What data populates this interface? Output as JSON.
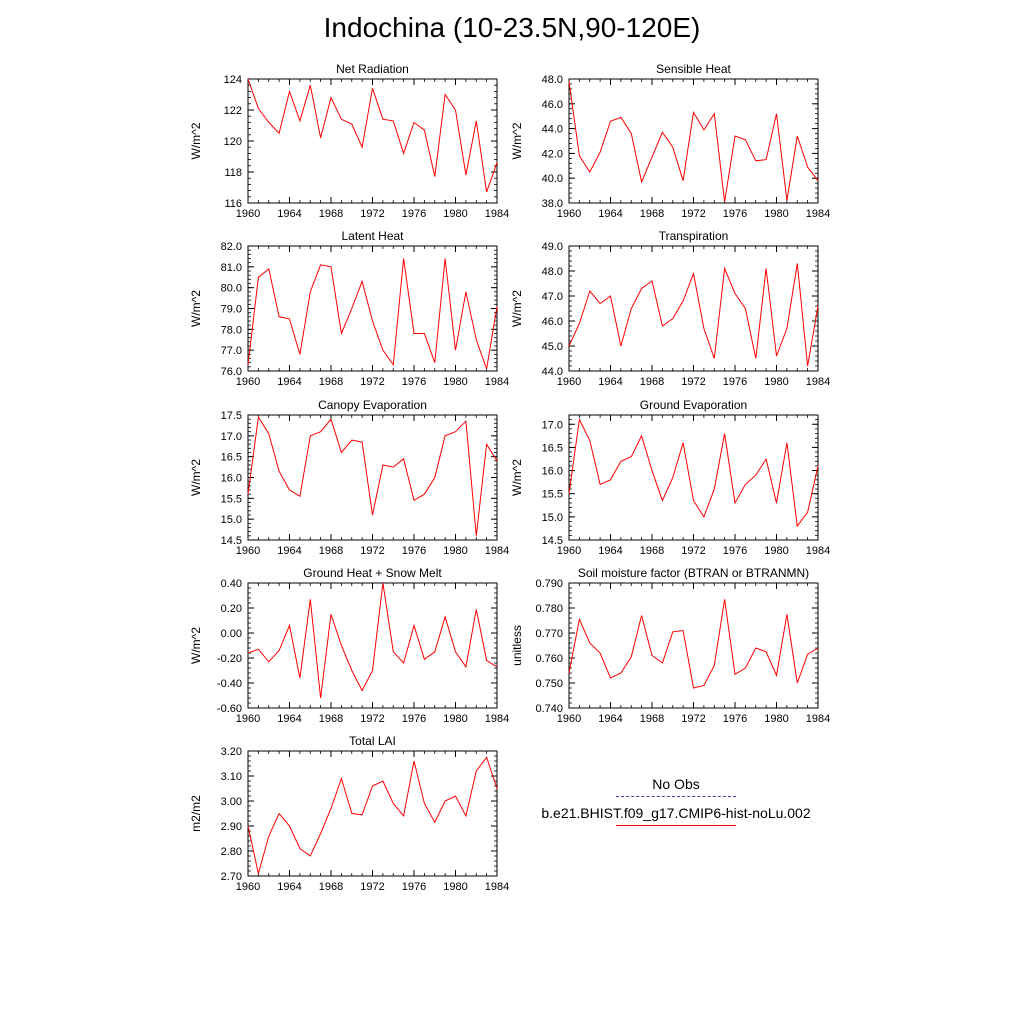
{
  "title": "Indochina (10-23.5N,90-120E)",
  "legend": [
    {
      "label": "No Obs",
      "color": "#3b2f9e",
      "style": "dashed"
    },
    {
      "label": "b.e21.BHIST.f09_g17.CMIP6-hist-noLu.002",
      "color": "#ff0000",
      "style": "solid"
    }
  ],
  "chart_data": [
    {
      "type": "line",
      "title": "Net Radiation",
      "ylabel": "W/m^2",
      "x": [
        1960,
        1961,
        1962,
        1963,
        1964,
        1965,
        1966,
        1967,
        1968,
        1969,
        1970,
        1971,
        1972,
        1973,
        1974,
        1975,
        1976,
        1977,
        1978,
        1979,
        1980,
        1981,
        1982,
        1983,
        1984
      ],
      "xlim": [
        1960,
        1984
      ],
      "xticks": [
        "1960",
        "1964",
        "1968",
        "1972",
        "1976",
        "1980",
        "1984"
      ],
      "ylim": [
        116,
        124
      ],
      "yticks": [
        "116",
        "118",
        "120",
        "122",
        "124"
      ],
      "series": [
        {
          "color": "#ff0000",
          "values": [
            124.0,
            122.1,
            121.2,
            120.5,
            123.2,
            121.3,
            123.6,
            120.2,
            122.8,
            121.4,
            121.1,
            119.6,
            123.4,
            121.4,
            121.3,
            119.2,
            121.2,
            120.7,
            117.7,
            123.0,
            122.0,
            117.8,
            121.3,
            116.7,
            118.6
          ]
        }
      ]
    },
    {
      "type": "line",
      "title": "Sensible Heat",
      "ylabel": "W/m^2",
      "x": [
        1960,
        1961,
        1962,
        1963,
        1964,
        1965,
        1966,
        1967,
        1968,
        1969,
        1970,
        1971,
        1972,
        1973,
        1974,
        1975,
        1976,
        1977,
        1978,
        1979,
        1980,
        1981,
        1982,
        1983,
        1984
      ],
      "xlim": [
        1960,
        1984
      ],
      "xticks": [
        "1960",
        "1964",
        "1968",
        "1972",
        "1976",
        "1980",
        "1984"
      ],
      "ylim": [
        38,
        48
      ],
      "yticks": [
        "38.0",
        "40.0",
        "42.0",
        "44.0",
        "46.0",
        "48.0"
      ],
      "series": [
        {
          "color": "#ff0000",
          "values": [
            47.8,
            41.8,
            40.5,
            42.1,
            44.6,
            44.9,
            43.6,
            39.7,
            41.7,
            43.7,
            42.5,
            39.8,
            45.3,
            43.9,
            45.2,
            38.1,
            43.4,
            43.1,
            41.4,
            41.5,
            45.2,
            38.2,
            43.4,
            40.9,
            39.8
          ]
        }
      ]
    },
    {
      "type": "line",
      "title": "Latent Heat",
      "ylabel": "W/m^2",
      "x": [
        1960,
        1961,
        1962,
        1963,
        1964,
        1965,
        1966,
        1967,
        1968,
        1969,
        1970,
        1971,
        1972,
        1973,
        1974,
        1975,
        1976,
        1977,
        1978,
        1979,
        1980,
        1981,
        1982,
        1983,
        1984
      ],
      "xlim": [
        1960,
        1984
      ],
      "xticks": [
        "1960",
        "1964",
        "1968",
        "1972",
        "1976",
        "1980",
        "1984"
      ],
      "ylim": [
        76,
        82
      ],
      "yticks": [
        "76.0",
        "77.0",
        "78.0",
        "79.0",
        "80.0",
        "81.0",
        "82.0"
      ],
      "series": [
        {
          "color": "#ff0000",
          "values": [
            76.3,
            80.5,
            80.9,
            78.6,
            78.5,
            76.8,
            79.8,
            81.1,
            81.0,
            77.8,
            79.0,
            80.3,
            78.4,
            77.0,
            76.3,
            81.4,
            77.8,
            77.8,
            76.4,
            81.4,
            77.0,
            79.8,
            77.5,
            76.1,
            79.1
          ]
        }
      ]
    },
    {
      "type": "line",
      "title": "Transpiration",
      "ylabel": "W/m^2",
      "x": [
        1960,
        1961,
        1962,
        1963,
        1964,
        1965,
        1966,
        1967,
        1968,
        1969,
        1970,
        1971,
        1972,
        1973,
        1974,
        1975,
        1976,
        1977,
        1978,
        1979,
        1980,
        1981,
        1982,
        1983,
        1984
      ],
      "xlim": [
        1960,
        1984
      ],
      "xticks": [
        "1960",
        "1964",
        "1968",
        "1972",
        "1976",
        "1980",
        "1984"
      ],
      "ylim": [
        44,
        49
      ],
      "yticks": [
        "44.0",
        "45.0",
        "46.0",
        "47.0",
        "48.0",
        "49.0"
      ],
      "series": [
        {
          "color": "#ff0000",
          "values": [
            45.0,
            45.9,
            47.2,
            46.7,
            47.0,
            45.0,
            46.5,
            47.3,
            47.6,
            45.8,
            46.1,
            46.8,
            47.9,
            45.7,
            44.5,
            48.1,
            47.1,
            46.5,
            44.5,
            48.1,
            44.6,
            45.7,
            48.3,
            44.2,
            46.6
          ]
        }
      ]
    },
    {
      "type": "line",
      "title": "Canopy Evaporation",
      "ylabel": "W/m^2",
      "x": [
        1960,
        1961,
        1962,
        1963,
        1964,
        1965,
        1966,
        1967,
        1968,
        1969,
        1970,
        1971,
        1972,
        1973,
        1974,
        1975,
        1976,
        1977,
        1978,
        1979,
        1980,
        1981,
        1982,
        1983,
        1984
      ],
      "xlim": [
        1960,
        1984
      ],
      "xticks": [
        "1960",
        "1964",
        "1968",
        "1972",
        "1976",
        "1980",
        "1984"
      ],
      "ylim": [
        14.5,
        17.5
      ],
      "yticks": [
        "14.5",
        "15.0",
        "15.5",
        "16.0",
        "16.5",
        "17.0",
        "17.5"
      ],
      "series": [
        {
          "color": "#ff0000",
          "values": [
            15.6,
            17.45,
            17.05,
            16.15,
            15.7,
            15.55,
            17.0,
            17.1,
            17.4,
            16.6,
            16.9,
            16.85,
            15.1,
            16.3,
            16.25,
            16.45,
            15.45,
            15.6,
            16.0,
            17.0,
            17.1,
            17.35,
            14.6,
            16.8,
            16.4
          ]
        }
      ]
    },
    {
      "type": "line",
      "title": "Ground Evaporation",
      "ylabel": "W/m^2",
      "x": [
        1960,
        1961,
        1962,
        1963,
        1964,
        1965,
        1966,
        1967,
        1968,
        1969,
        1970,
        1971,
        1972,
        1973,
        1974,
        1975,
        1976,
        1977,
        1978,
        1979,
        1980,
        1981,
        1982,
        1983,
        1984
      ],
      "xlim": [
        1960,
        1984
      ],
      "xticks": [
        "1960",
        "1964",
        "1968",
        "1972",
        "1976",
        "1980",
        "1984"
      ],
      "ylim": [
        14.5,
        17.2
      ],
      "yticks": [
        "14.5",
        "15.0",
        "15.5",
        "16.0",
        "16.5",
        "17.0"
      ],
      "series": [
        {
          "color": "#ff0000",
          "values": [
            15.5,
            17.1,
            16.65,
            15.7,
            15.8,
            16.2,
            16.3,
            16.75,
            16.0,
            15.35,
            15.85,
            16.6,
            15.35,
            15.0,
            15.6,
            16.8,
            15.3,
            15.7,
            15.9,
            16.25,
            15.3,
            16.6,
            14.8,
            15.1,
            16.1
          ]
        }
      ]
    },
    {
      "type": "line",
      "title": "Ground Heat + Snow Melt",
      "ylabel": "W/m^2",
      "x": [
        1960,
        1961,
        1962,
        1963,
        1964,
        1965,
        1966,
        1967,
        1968,
        1969,
        1970,
        1971,
        1972,
        1973,
        1974,
        1975,
        1976,
        1977,
        1978,
        1979,
        1980,
        1981,
        1982,
        1983,
        1984
      ],
      "xlim": [
        1960,
        1984
      ],
      "xticks": [
        "1960",
        "1964",
        "1968",
        "1972",
        "1976",
        "1980",
        "1984"
      ],
      "ylim": [
        -0.6,
        0.4
      ],
      "yticks": [
        "-0.60",
        "-0.40",
        "-0.20",
        "0.00",
        "0.20",
        "0.40"
      ],
      "series": [
        {
          "color": "#ff0000",
          "values": [
            -0.16,
            -0.13,
            -0.23,
            -0.14,
            0.06,
            -0.36,
            0.27,
            -0.52,
            0.15,
            -0.1,
            -0.3,
            -0.46,
            -0.3,
            0.4,
            -0.15,
            -0.24,
            0.06,
            -0.21,
            -0.15,
            0.13,
            -0.15,
            -0.27,
            0.19,
            -0.22,
            -0.27
          ]
        }
      ]
    },
    {
      "type": "line",
      "title": "Soil moisture factor (BTRAN or BTRANMN)",
      "ylabel": "unitless",
      "x": [
        1960,
        1961,
        1962,
        1963,
        1964,
        1965,
        1966,
        1967,
        1968,
        1969,
        1970,
        1971,
        1972,
        1973,
        1974,
        1975,
        1976,
        1977,
        1978,
        1979,
        1980,
        1981,
        1982,
        1983,
        1984
      ],
      "xlim": [
        1960,
        1984
      ],
      "xticks": [
        "1960",
        "1964",
        "1968",
        "1972",
        "1976",
        "1980",
        "1984"
      ],
      "ylim": [
        0.74,
        0.79
      ],
      "yticks": [
        "0.740",
        "0.750",
        "0.760",
        "0.770",
        "0.780",
        "0.790"
      ],
      "series": [
        {
          "color": "#ff0000",
          "values": [
            0.754,
            0.7755,
            0.766,
            0.762,
            0.752,
            0.754,
            0.7605,
            0.777,
            0.761,
            0.758,
            0.7705,
            0.771,
            0.748,
            0.749,
            0.757,
            0.7835,
            0.7535,
            0.756,
            0.764,
            0.7625,
            0.753,
            0.7775,
            0.75,
            0.7615,
            0.764
          ]
        }
      ]
    },
    {
      "type": "line",
      "title": "Total LAI",
      "ylabel": "m2/m2",
      "x": [
        1960,
        1961,
        1962,
        1963,
        1964,
        1965,
        1966,
        1967,
        1968,
        1969,
        1970,
        1971,
        1972,
        1973,
        1974,
        1975,
        1976,
        1977,
        1978,
        1979,
        1980,
        1981,
        1982,
        1983,
        1984
      ],
      "xlim": [
        1960,
        1984
      ],
      "xticks": [
        "1960",
        "1964",
        "1968",
        "1972",
        "1976",
        "1980",
        "1984"
      ],
      "ylim": [
        2.7,
        3.2
      ],
      "yticks": [
        "2.70",
        "2.80",
        "2.90",
        "3.00",
        "3.10",
        "3.20"
      ],
      "series": [
        {
          "color": "#ff0000",
          "values": [
            2.9,
            2.71,
            2.86,
            2.95,
            2.9,
            2.81,
            2.78,
            2.87,
            2.97,
            3.09,
            2.95,
            2.945,
            3.06,
            3.08,
            2.99,
            2.94,
            3.16,
            2.99,
            2.915,
            3.0,
            3.02,
            2.94,
            3.12,
            3.175,
            3.05
          ]
        }
      ]
    }
  ]
}
